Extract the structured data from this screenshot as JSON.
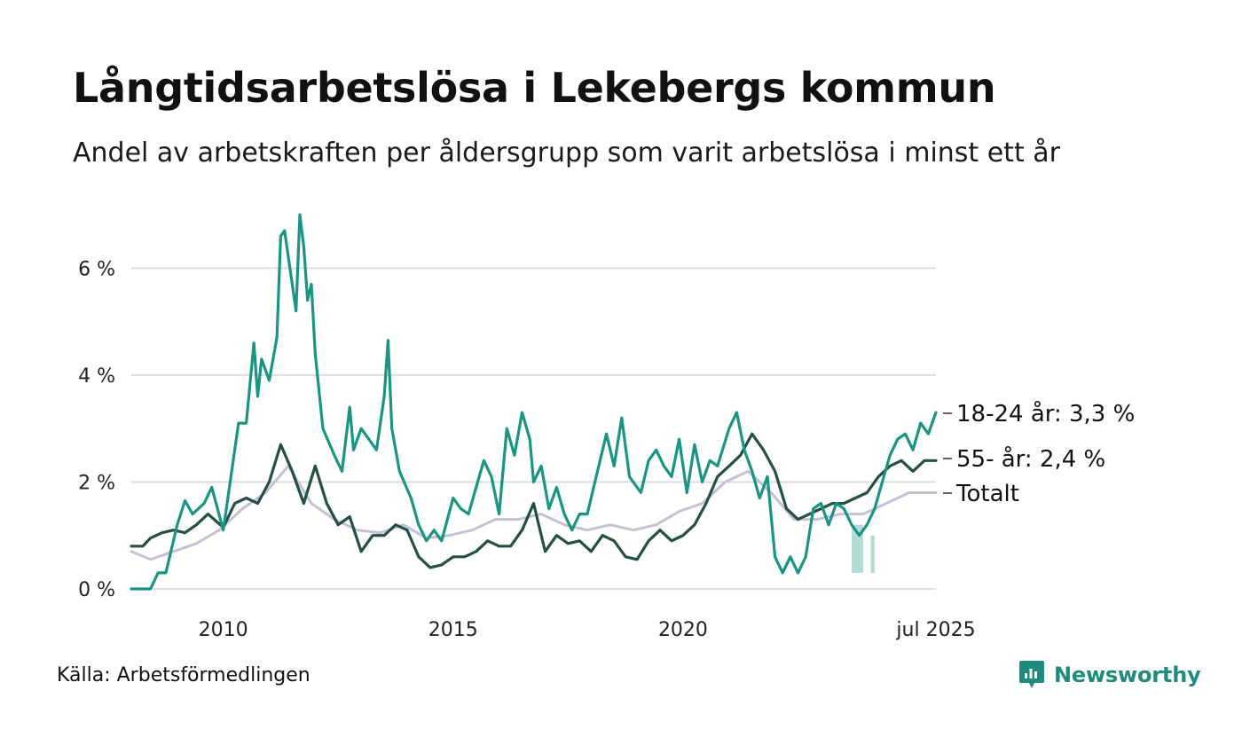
{
  "header": {
    "title": "Långtidsarbetslösa i Lekebergs kommun",
    "subtitle": "Andel av arbetskraften per åldersgrupp som varit arbetslösa i minst ett år"
  },
  "footer": {
    "source": "Källa: Arbetsförmedlingen",
    "brand": "Newsworthy",
    "brand_icon": "bar-chart-logo-icon"
  },
  "colors": {
    "youth": "#1a9483",
    "senior": "#244f43",
    "total": "#c5c1d5",
    "grid": "#dcdce2",
    "band": "#a7d6cd",
    "brand": "#1f8a7e"
  },
  "chart_data": {
    "type": "line",
    "title": "Långtidsarbetslösa i Lekebergs kommun",
    "subtitle": "Andel av arbetskraften per åldersgrupp som varit arbetslösa i minst ett år",
    "xlim": [
      "2008-01",
      "2025-07"
    ],
    "ylim": [
      0,
      7.2
    ],
    "yticks": [
      0,
      2,
      4,
      6
    ],
    "ytick_labels": [
      "0 %",
      "2 %",
      "4 %",
      "6 %"
    ],
    "xticks": [
      {
        "x": "2010-01",
        "label": "2010"
      },
      {
        "x": "2015-01",
        "label": "2015"
      },
      {
        "x": "2020-01",
        "label": "2020"
      },
      {
        "x": "2025-07",
        "label": "jul 2025"
      }
    ],
    "grid": true,
    "legend": "end-of-line labels, right",
    "series": [
      {
        "name": "18-24 år",
        "end_label": "18-24 år: 3,3 %",
        "color": "#1a9483",
        "points": [
          [
            "2008-01",
            0
          ],
          [
            "2008-06",
            0
          ],
          [
            "2008-08",
            0.3
          ],
          [
            "2008-10",
            0.3
          ],
          [
            "2009-01",
            1.2
          ],
          [
            "2009-03",
            1.65
          ],
          [
            "2009-05",
            1.4
          ],
          [
            "2009-08",
            1.6
          ],
          [
            "2009-10",
            1.9
          ],
          [
            "2010-01",
            1.1
          ],
          [
            "2010-03",
            2.1
          ],
          [
            "2010-05",
            3.1
          ],
          [
            "2010-07",
            3.1
          ],
          [
            "2010-09",
            4.6
          ],
          [
            "2010-10",
            3.6
          ],
          [
            "2010-11",
            4.3
          ],
          [
            "2011-01",
            3.9
          ],
          [
            "2011-03",
            4.7
          ],
          [
            "2011-04",
            6.6
          ],
          [
            "2011-05",
            6.7
          ],
          [
            "2011-07",
            5.7
          ],
          [
            "2011-08",
            5.2
          ],
          [
            "2011-09",
            7.0
          ],
          [
            "2011-10",
            6.4
          ],
          [
            "2011-11",
            5.4
          ],
          [
            "2011-12",
            5.7
          ],
          [
            "2012-01",
            4.4
          ],
          [
            "2012-03",
            3.0
          ],
          [
            "2012-06",
            2.5
          ],
          [
            "2012-08",
            2.2
          ],
          [
            "2012-10",
            3.4
          ],
          [
            "2012-11",
            2.6
          ],
          [
            "2013-01",
            3.0
          ],
          [
            "2013-03",
            2.8
          ],
          [
            "2013-05",
            2.6
          ],
          [
            "2013-07",
            3.6
          ],
          [
            "2013-08",
            4.65
          ],
          [
            "2013-09",
            3.0
          ],
          [
            "2013-11",
            2.2
          ],
          [
            "2014-02",
            1.7
          ],
          [
            "2014-04",
            1.2
          ],
          [
            "2014-06",
            0.9
          ],
          [
            "2014-08",
            1.1
          ],
          [
            "2014-10",
            0.9
          ],
          [
            "2015-01",
            1.7
          ],
          [
            "2015-03",
            1.5
          ],
          [
            "2015-05",
            1.4
          ],
          [
            "2015-07",
            1.9
          ],
          [
            "2015-09",
            2.4
          ],
          [
            "2015-11",
            2.1
          ],
          [
            "2016-01",
            1.4
          ],
          [
            "2016-03",
            3.0
          ],
          [
            "2016-05",
            2.5
          ],
          [
            "2016-07",
            3.3
          ],
          [
            "2016-09",
            2.8
          ],
          [
            "2016-10",
            2.0
          ],
          [
            "2016-12",
            2.3
          ],
          [
            "2017-02",
            1.5
          ],
          [
            "2017-04",
            1.9
          ],
          [
            "2017-06",
            1.4
          ],
          [
            "2017-08",
            1.1
          ],
          [
            "2017-10",
            1.4
          ],
          [
            "2017-12",
            1.4
          ],
          [
            "2018-03",
            2.3
          ],
          [
            "2018-05",
            2.9
          ],
          [
            "2018-07",
            2.3
          ],
          [
            "2018-09",
            3.2
          ],
          [
            "2018-11",
            2.1
          ],
          [
            "2019-02",
            1.8
          ],
          [
            "2019-04",
            2.4
          ],
          [
            "2019-06",
            2.6
          ],
          [
            "2019-08",
            2.3
          ],
          [
            "2019-10",
            2.1
          ],
          [
            "2019-12",
            2.8
          ],
          [
            "2020-02",
            1.8
          ],
          [
            "2020-04",
            2.7
          ],
          [
            "2020-06",
            2.0
          ],
          [
            "2020-08",
            2.4
          ],
          [
            "2020-10",
            2.3
          ],
          [
            "2021-01",
            3.0
          ],
          [
            "2021-03",
            3.3
          ],
          [
            "2021-05",
            2.6
          ],
          [
            "2021-07",
            2.2
          ],
          [
            "2021-09",
            1.7
          ],
          [
            "2021-11",
            2.1
          ],
          [
            "2022-01",
            0.6
          ],
          [
            "2022-03",
            0.3
          ],
          [
            "2022-05",
            0.6
          ],
          [
            "2022-07",
            0.3
          ],
          [
            "2022-09",
            0.6
          ],
          [
            "2022-11",
            1.5
          ],
          [
            "2023-01",
            1.6
          ],
          [
            "2023-03",
            1.2
          ],
          [
            "2023-05",
            1.6
          ],
          [
            "2023-07",
            1.5
          ],
          [
            "2023-09",
            1.2
          ],
          [
            "2023-11",
            1.0
          ],
          [
            "2024-01",
            1.2
          ],
          [
            "2024-03",
            1.5
          ],
          [
            "2024-05",
            2.0
          ],
          [
            "2024-07",
            2.5
          ],
          [
            "2024-09",
            2.8
          ],
          [
            "2024-11",
            2.9
          ],
          [
            "2025-01",
            2.6
          ],
          [
            "2025-03",
            3.1
          ],
          [
            "2025-05",
            2.9
          ],
          [
            "2025-07",
            3.3
          ]
        ]
      },
      {
        "name": "55- år",
        "end_label": "55- år: 2,4 %",
        "color": "#244f43",
        "points": [
          [
            "2008-01",
            0.8
          ],
          [
            "2008-04",
            0.8
          ],
          [
            "2008-06",
            0.95
          ],
          [
            "2008-09",
            1.05
          ],
          [
            "2008-12",
            1.1
          ],
          [
            "2009-03",
            1.05
          ],
          [
            "2009-06",
            1.2
          ],
          [
            "2009-09",
            1.4
          ],
          [
            "2010-01",
            1.15
          ],
          [
            "2010-04",
            1.6
          ],
          [
            "2010-07",
            1.7
          ],
          [
            "2010-10",
            1.6
          ],
          [
            "2011-01",
            2.0
          ],
          [
            "2011-04",
            2.7
          ],
          [
            "2011-07",
            2.2
          ],
          [
            "2011-10",
            1.6
          ],
          [
            "2012-01",
            2.3
          ],
          [
            "2012-04",
            1.6
          ],
          [
            "2012-07",
            1.2
          ],
          [
            "2012-10",
            1.35
          ],
          [
            "2013-01",
            0.7
          ],
          [
            "2013-04",
            1.0
          ],
          [
            "2013-07",
            1.0
          ],
          [
            "2013-10",
            1.2
          ],
          [
            "2014-01",
            1.1
          ],
          [
            "2014-04",
            0.6
          ],
          [
            "2014-07",
            0.4
          ],
          [
            "2014-10",
            0.45
          ],
          [
            "2015-01",
            0.6
          ],
          [
            "2015-04",
            0.6
          ],
          [
            "2015-07",
            0.7
          ],
          [
            "2015-10",
            0.9
          ],
          [
            "2016-01",
            0.8
          ],
          [
            "2016-04",
            0.8
          ],
          [
            "2016-07",
            1.1
          ],
          [
            "2016-10",
            1.6
          ],
          [
            "2017-01",
            0.7
          ],
          [
            "2017-04",
            1.0
          ],
          [
            "2017-07",
            0.85
          ],
          [
            "2017-10",
            0.9
          ],
          [
            "2018-01",
            0.7
          ],
          [
            "2018-04",
            1.0
          ],
          [
            "2018-07",
            0.9
          ],
          [
            "2018-10",
            0.6
          ],
          [
            "2019-01",
            0.55
          ],
          [
            "2019-04",
            0.9
          ],
          [
            "2019-07",
            1.1
          ],
          [
            "2019-10",
            0.9
          ],
          [
            "2020-01",
            1.0
          ],
          [
            "2020-04",
            1.2
          ],
          [
            "2020-07",
            1.6
          ],
          [
            "2020-10",
            2.1
          ],
          [
            "2021-01",
            2.3
          ],
          [
            "2021-04",
            2.5
          ],
          [
            "2021-07",
            2.9
          ],
          [
            "2021-10",
            2.6
          ],
          [
            "2022-01",
            2.2
          ],
          [
            "2022-04",
            1.5
          ],
          [
            "2022-07",
            1.3
          ],
          [
            "2022-10",
            1.4
          ],
          [
            "2023-01",
            1.5
          ],
          [
            "2023-04",
            1.6
          ],
          [
            "2023-07",
            1.6
          ],
          [
            "2023-10",
            1.7
          ],
          [
            "2024-01",
            1.8
          ],
          [
            "2024-04",
            2.1
          ],
          [
            "2024-07",
            2.3
          ],
          [
            "2024-10",
            2.4
          ],
          [
            "2025-01",
            2.2
          ],
          [
            "2025-04",
            2.4
          ],
          [
            "2025-07",
            2.4
          ]
        ]
      },
      {
        "name": "Totalt",
        "end_label": "Totalt",
        "color": "#c5c1d5",
        "points": [
          [
            "2008-01",
            0.7
          ],
          [
            "2008-06",
            0.55
          ],
          [
            "2008-12",
            0.7
          ],
          [
            "2009-06",
            0.85
          ],
          [
            "2009-12",
            1.1
          ],
          [
            "2010-06",
            1.5
          ],
          [
            "2010-12",
            1.8
          ],
          [
            "2011-06",
            2.3
          ],
          [
            "2011-12",
            1.6
          ],
          [
            "2012-06",
            1.3
          ],
          [
            "2012-12",
            1.1
          ],
          [
            "2013-06",
            1.05
          ],
          [
            "2013-12",
            1.2
          ],
          [
            "2014-06",
            0.95
          ],
          [
            "2014-12",
            1.0
          ],
          [
            "2015-06",
            1.1
          ],
          [
            "2015-12",
            1.3
          ],
          [
            "2016-06",
            1.3
          ],
          [
            "2016-12",
            1.4
          ],
          [
            "2017-06",
            1.2
          ],
          [
            "2017-12",
            1.1
          ],
          [
            "2018-06",
            1.2
          ],
          [
            "2018-12",
            1.1
          ],
          [
            "2019-06",
            1.2
          ],
          [
            "2019-12",
            1.45
          ],
          [
            "2020-06",
            1.6
          ],
          [
            "2020-12",
            2.0
          ],
          [
            "2021-06",
            2.2
          ],
          [
            "2021-12",
            1.8
          ],
          [
            "2022-06",
            1.3
          ],
          [
            "2022-12",
            1.3
          ],
          [
            "2023-06",
            1.4
          ],
          [
            "2023-12",
            1.4
          ],
          [
            "2024-06",
            1.6
          ],
          [
            "2024-12",
            1.8
          ],
          [
            "2025-07",
            1.8
          ]
        ]
      }
    ],
    "bands": [
      {
        "x_start": "2023-09",
        "x_end": "2023-12",
        "y_low": 0.3,
        "y_high": 1.2
      },
      {
        "x_start": "2024-02",
        "x_end": "2024-03",
        "y_low": 0.3,
        "y_high": 1.0
      }
    ]
  }
}
